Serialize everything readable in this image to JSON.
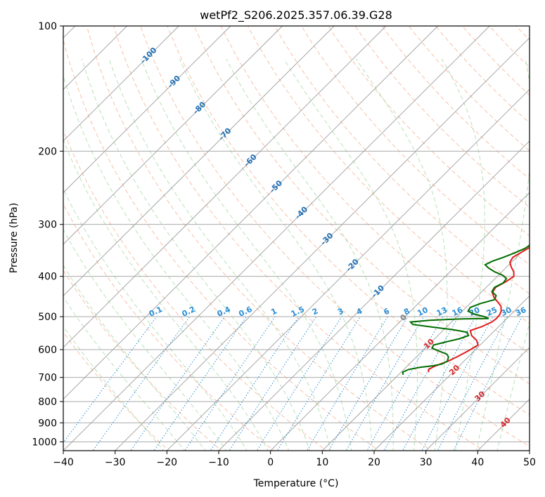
{
  "chart_data": {
    "type": "line",
    "title": "wetPf2_S206.2025.357.06.39.G28",
    "xlabel": "Temperature (°C)",
    "ylabel": "Pressure (hPa)",
    "xlim": [
      -40,
      50
    ],
    "ylim": [
      1050,
      100
    ],
    "x_ticks": [
      -40,
      -30,
      -20,
      -10,
      0,
      10,
      20,
      30,
      40,
      50
    ],
    "x_tick_labels": [
      "−40",
      "−30",
      "−20",
      "−10",
      "0",
      "10",
      "20",
      "30",
      "40",
      "50"
    ],
    "y_ticks": [
      100,
      200,
      300,
      400,
      500,
      600,
      700,
      800,
      900,
      1000
    ],
    "y_tick_labels": [
      "100",
      "200",
      "300",
      "400",
      "500",
      "600",
      "700",
      "800",
      "900",
      "1000"
    ],
    "isotherm_labels": [
      {
        "text": "-100",
        "value": -100
      },
      {
        "text": "-90",
        "value": -90
      },
      {
        "text": "-80",
        "value": -80
      },
      {
        "text": "-70",
        "value": -70
      },
      {
        "text": "-60",
        "value": -60
      },
      {
        "text": "-50",
        "value": -50
      },
      {
        "text": "-40",
        "value": -40
      },
      {
        "text": "-30",
        "value": -30
      },
      {
        "text": "-20",
        "value": -20
      },
      {
        "text": "-10",
        "value": -10
      },
      {
        "text": "0",
        "value": 0
      },
      {
        "text": "10",
        "value": 10
      },
      {
        "text": "20",
        "value": 20
      },
      {
        "text": "30",
        "value": 30
      },
      {
        "text": "40",
        "value": 40
      }
    ],
    "mixing_ratio_labels": [
      "0.1",
      "0.2",
      "0.4",
      "0.6",
      "1",
      "1.5",
      "2",
      "3",
      "4",
      "6",
      "8",
      "10",
      "13",
      "16",
      "20",
      "25",
      "30",
      "36"
    ],
    "series": [
      {
        "name": "Temperature",
        "color": "#e31a1c",
        "points": [
          [
            15.3,
            680
          ],
          [
            14.8,
            670
          ],
          [
            15.2,
            660
          ],
          [
            16.0,
            650
          ],
          [
            16.9,
            640
          ],
          [
            17.8,
            625
          ],
          [
            18.8,
            605
          ],
          [
            19.6,
            585
          ],
          [
            18.4,
            570
          ],
          [
            16.5,
            555
          ],
          [
            15.3,
            540
          ],
          [
            16.8,
            528
          ],
          [
            17.8,
            515
          ],
          [
            18.0,
            505
          ],
          [
            17.9,
            495
          ],
          [
            17.5,
            485
          ],
          [
            16.5,
            472
          ],
          [
            15.2,
            462
          ],
          [
            13.5,
            450
          ],
          [
            12.2,
            438
          ],
          [
            11.8,
            425
          ],
          [
            12.7,
            412
          ],
          [
            13.2,
            400
          ],
          [
            12.3,
            390
          ],
          [
            10.9,
            380
          ],
          [
            9.7,
            370
          ],
          [
            9.3,
            360
          ],
          [
            10.0,
            350
          ],
          [
            10.7,
            340
          ],
          [
            11.1,
            330
          ],
          [
            10.6,
            320
          ],
          [
            10.2,
            310
          ],
          [
            10.9,
            300
          ],
          [
            11.3,
            290
          ],
          [
            10.8,
            282
          ],
          [
            9.7,
            275
          ],
          [
            8.8,
            265
          ],
          [
            7.9,
            255
          ],
          [
            6.9,
            245
          ],
          [
            5.9,
            235
          ],
          [
            4.8,
            225
          ],
          [
            3.6,
            215
          ],
          [
            2.7,
            205
          ],
          [
            2.2,
            195
          ],
          [
            2.1,
            185
          ],
          [
            2.7,
            175
          ],
          [
            3.6,
            165
          ],
          [
            4.4,
            155
          ],
          [
            5.0,
            145
          ],
          [
            5.6,
            135
          ],
          [
            6.9,
            127
          ],
          [
            8.9,
            120
          ],
          [
            10.9,
            114
          ],
          [
            12.1,
            108
          ],
          [
            12.8,
            103
          ],
          [
            13.4,
            100
          ]
        ]
      },
      {
        "name": "Dewpoint",
        "color": "#006d00",
        "points": [
          [
            10.9,
            690
          ],
          [
            10.3,
            680
          ],
          [
            10.9,
            670
          ],
          [
            12.7,
            662
          ],
          [
            15.0,
            656
          ],
          [
            16.3,
            650
          ],
          [
            16.8,
            640
          ],
          [
            16.2,
            625
          ],
          [
            15.3,
            615
          ],
          [
            13.2,
            605
          ],
          [
            11.3,
            595
          ],
          [
            11.0,
            585
          ],
          [
            12.8,
            575
          ],
          [
            14.8,
            565
          ],
          [
            15.9,
            555
          ],
          [
            15.0,
            545
          ],
          [
            12.0,
            538
          ],
          [
            7.5,
            530
          ],
          [
            3.0,
            522
          ],
          [
            2.1,
            515
          ],
          [
            5.5,
            510
          ],
          [
            11.5,
            506
          ],
          [
            16.5,
            505
          ],
          [
            15.3,
            500
          ],
          [
            12.9,
            493
          ],
          [
            11.1,
            485
          ],
          [
            10.8,
            475
          ],
          [
            12.0,
            465
          ],
          [
            14.0,
            455
          ],
          [
            13.5,
            445
          ],
          [
            11.9,
            435
          ],
          [
            11.6,
            425
          ],
          [
            12.4,
            415
          ],
          [
            12.2,
            405
          ],
          [
            10.7,
            397
          ],
          [
            8.6,
            390
          ],
          [
            6.7,
            382
          ],
          [
            5.4,
            375
          ],
          [
            6.1,
            368
          ],
          [
            7.5,
            360
          ],
          [
            8.7,
            352
          ],
          [
            9.9,
            343
          ],
          [
            10.4,
            335
          ],
          [
            9.9,
            327
          ],
          [
            9.1,
            320
          ],
          [
            9.4,
            313
          ],
          [
            10.5,
            305
          ],
          [
            11.1,
            297
          ],
          [
            10.5,
            290
          ],
          [
            9.4,
            283
          ],
          [
            8.5,
            273
          ],
          [
            7.5,
            263
          ],
          [
            6.5,
            253
          ],
          [
            5.4,
            242
          ],
          [
            4.3,
            230
          ],
          [
            3.4,
            220
          ],
          [
            2.8,
            210
          ],
          [
            2.1,
            200
          ],
          [
            1.2,
            193
          ],
          [
            -0.2,
            187
          ],
          [
            -1.9,
            181
          ],
          [
            -3.9,
            175
          ],
          [
            -5.7,
            168
          ],
          [
            -6.7,
            162
          ],
          [
            -7.0,
            155
          ],
          [
            -7.0,
            148
          ],
          [
            -6.6,
            142
          ],
          [
            -5.6,
            136
          ],
          [
            -4.6,
            130
          ],
          [
            -3.8,
            124
          ],
          [
            -3.5,
            118
          ],
          [
            -2.8,
            113
          ],
          [
            -1.6,
            108
          ],
          [
            -0.8,
            104
          ],
          [
            -0.4,
            100
          ]
        ]
      }
    ]
  }
}
